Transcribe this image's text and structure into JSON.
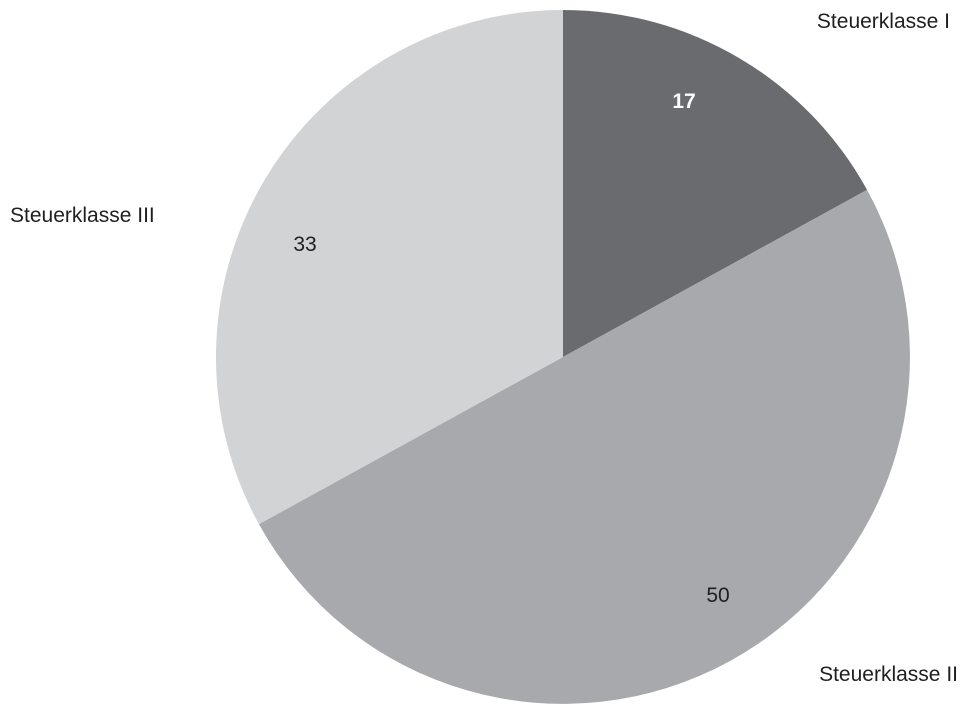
{
  "chart_data": {
    "type": "pie",
    "categories": [
      "Steuerklasse I",
      "Steuerklasse II",
      "Steuerklasse III"
    ],
    "values": [
      17,
      50,
      33
    ],
    "value_labels": [
      "17",
      "50",
      "33"
    ],
    "colors": [
      "#6a6b6e",
      "#a8a9ac",
      "#d2d3d5"
    ],
    "value_label_colors": [
      "#ffffff",
      "#1f1f1f",
      "#1f1f1f"
    ],
    "value_label_bold": [
      true,
      false,
      false
    ],
    "start_angle": "12 o'clock",
    "direction": "clockwise",
    "legend": "none"
  }
}
